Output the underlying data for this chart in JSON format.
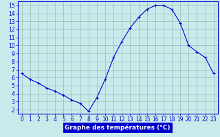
{
  "hours": [
    0,
    1,
    2,
    3,
    4,
    5,
    6,
    7,
    8,
    9,
    10,
    11,
    12,
    13,
    14,
    15,
    16,
    17,
    18,
    19,
    20,
    21,
    22,
    23
  ],
  "temperatures": [
    6.5,
    5.8,
    5.3,
    4.7,
    4.3,
    3.8,
    3.2,
    2.8,
    1.8,
    3.5,
    5.8,
    8.5,
    10.5,
    12.2,
    13.5,
    14.5,
    15.0,
    15.0,
    14.5,
    12.8,
    10.0,
    9.2,
    8.5,
    6.5
  ],
  "line_color": "#0000cc",
  "marker": "+",
  "bg_color": "#c8eaea",
  "plot_bg_color": "#c8eaea",
  "grid_color": "#9bbaba",
  "xlabel": "Graphe des températures (°C)",
  "xlabel_bg": "#0000cc",
  "xlabel_fg": "#ffffff",
  "xlim": [
    -0.5,
    23.5
  ],
  "ylim": [
    1.5,
    15.5
  ],
  "yticks": [
    2,
    3,
    4,
    5,
    6,
    7,
    8,
    9,
    10,
    11,
    12,
    13,
    14,
    15
  ],
  "xticks": [
    0,
    1,
    2,
    3,
    4,
    5,
    6,
    7,
    8,
    9,
    10,
    11,
    12,
    13,
    14,
    15,
    16,
    17,
    18,
    19,
    20,
    21,
    22,
    23
  ],
  "tick_color": "#0000cc",
  "spine_color": "#0000cc",
  "tick_fontsize": 5.5,
  "xlabel_fontsize": 6.5
}
